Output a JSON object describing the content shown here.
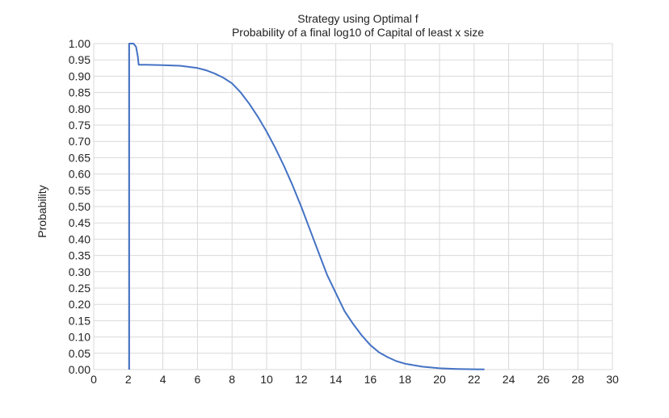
{
  "chart_data": {
    "type": "line",
    "title": "Strategy using Optimal f",
    "subtitle": "Probability of a final log10 of Capital of least x size",
    "xlabel": "",
    "ylabel": "Probability",
    "xlim": [
      0,
      30
    ],
    "ylim": [
      0,
      1
    ],
    "x_ticks": [
      "0",
      "2",
      "4",
      "6",
      "8",
      "10",
      "12",
      "14",
      "16",
      "18",
      "20",
      "22",
      "24",
      "26",
      "28",
      "30"
    ],
    "y_ticks": [
      "0.00",
      "0.05",
      "0.10",
      "0.15",
      "0.20",
      "0.25",
      "0.30",
      "0.35",
      "0.40",
      "0.45",
      "0.50",
      "0.55",
      "0.60",
      "0.65",
      "0.70",
      "0.75",
      "0.80",
      "0.85",
      "0.90",
      "0.95",
      "1.00"
    ],
    "grid": true,
    "line_color": "#4472c4",
    "series": [
      {
        "x": [
          2.05,
          2.05,
          2.3,
          2.45,
          2.55,
          2.6,
          3,
          4,
          5,
          6,
          6.5,
          7,
          7.5,
          8,
          8.5,
          9,
          9.5,
          10,
          10.5,
          11,
          11.5,
          12,
          12.5,
          13,
          13.5,
          14,
          14.5,
          15,
          15.5,
          16,
          16.5,
          17,
          17.5,
          18,
          19,
          20,
          21,
          22,
          22.6
        ],
        "y": [
          0,
          1.0,
          1.0,
          0.99,
          0.96,
          0.935,
          0.935,
          0.934,
          0.932,
          0.925,
          0.918,
          0.908,
          0.895,
          0.878,
          0.85,
          0.815,
          0.775,
          0.73,
          0.68,
          0.625,
          0.565,
          0.5,
          0.43,
          0.36,
          0.29,
          0.235,
          0.18,
          0.14,
          0.105,
          0.075,
          0.053,
          0.038,
          0.026,
          0.018,
          0.009,
          0.004,
          0.002,
          0.001,
          0.0005
        ]
      }
    ]
  }
}
